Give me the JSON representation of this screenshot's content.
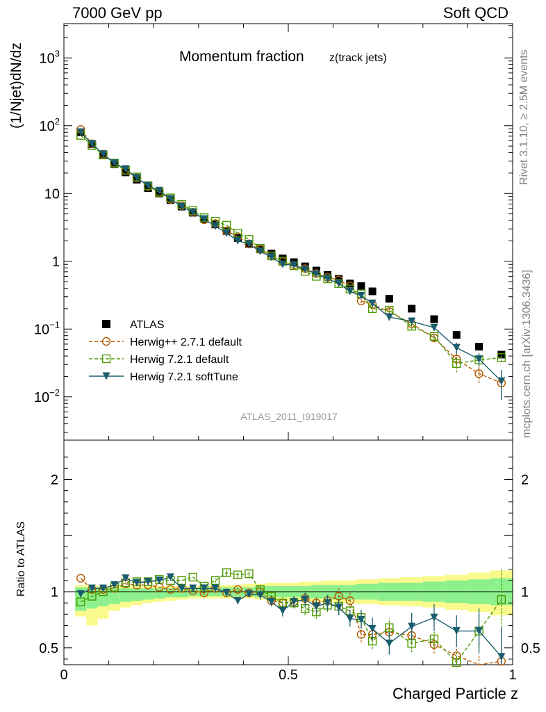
{
  "header": {
    "beam_label": "7000 GeV pp",
    "process_label": "Soft QCD",
    "rivet_label": "Rivet 3.1.10, ≥ 2.5M events",
    "source_label": "mcplots.cern.ch [arXiv:1306.3436]"
  },
  "chart_data": [
    {
      "type": "scatter",
      "title": "Momentum fraction",
      "title_sub": "z(track jets)",
      "analysis_id": "ATLAS_2011_I919017",
      "ylabel": "(1/Njet)dN/dz",
      "xlabel": "",
      "yscale": "log",
      "xlim": [
        0,
        1
      ],
      "ylim": [
        0.0023,
        3200.0
      ],
      "y_ticks": [
        {
          "value": 1000,
          "base": "10",
          "exp": "3"
        },
        {
          "value": 100,
          "base": "10",
          "exp": "2"
        },
        {
          "value": 10,
          "base": "10",
          "exp": ""
        },
        {
          "value": 1,
          "base": "1",
          "exp": ""
        },
        {
          "value": 0.1,
          "base": "10",
          "exp": "−1"
        },
        {
          "value": 0.01,
          "base": "10",
          "exp": "−2"
        }
      ],
      "legend_position": "bottom-left",
      "x": [
        0.0375,
        0.0625,
        0.0875,
        0.1125,
        0.1375,
        0.1625,
        0.1875,
        0.2125,
        0.2375,
        0.2625,
        0.2875,
        0.3125,
        0.3375,
        0.3625,
        0.3875,
        0.4125,
        0.4375,
        0.4625,
        0.4875,
        0.5125,
        0.5375,
        0.5625,
        0.5875,
        0.6125,
        0.6375,
        0.6625,
        0.6875,
        0.725,
        0.775,
        0.825,
        0.875,
        0.925,
        0.975
      ],
      "series": [
        {
          "name": "ATLAS",
          "color": "#000000",
          "marker": "filled-square",
          "line": "none",
          "values": [
            80,
            53,
            37,
            27,
            20.5,
            16,
            12,
            10,
            8,
            6.4,
            5.2,
            4.2,
            3.5,
            2.8,
            2.2,
            1.8,
            1.5,
            1.3,
            1.1,
            0.97,
            0.84,
            0.73,
            0.63,
            0.55,
            0.47,
            0.43,
            0.36,
            0.28,
            0.2,
            0.14,
            0.082,
            0.055,
            0.042
          ],
          "errors": []
        },
        {
          "name": "Herwig++ 2.7.1 default",
          "color": "#b35900",
          "marker": "open-circle",
          "line": "dashed",
          "values": [
            88,
            54,
            38,
            28,
            22,
            17,
            12.7,
            10.5,
            8.2,
            6.6,
            5.3,
            4.1,
            3.6,
            2.8,
            2.3,
            1.8,
            1.5,
            1.2,
            0.99,
            0.88,
            0.78,
            0.66,
            0.58,
            0.53,
            0.43,
            0.26,
            0.23,
            0.18,
            0.12,
            0.074,
            0.036,
            0.022,
            0.016
          ],
          "errors": [
            0,
            0,
            0,
            0,
            0,
            0,
            0,
            0,
            0,
            0,
            0,
            0,
            0,
            0,
            0,
            0,
            0,
            0,
            0,
            0,
            0,
            0,
            0,
            0,
            0,
            0.02,
            0.02,
            0.015,
            0.012,
            0.009,
            0.008,
            0.006,
            0.006
          ]
        },
        {
          "name": "Herwig 7.2.1 default",
          "color": "#4c9900",
          "marker": "open-square",
          "line": "dashed",
          "values": [
            72,
            51,
            37,
            28,
            22,
            17.5,
            13,
            10.4,
            8.6,
            6.9,
            5.6,
            4.4,
            3.9,
            3.4,
            2.6,
            2.1,
            1.55,
            1.2,
            1.0,
            0.86,
            0.71,
            0.6,
            0.55,
            0.47,
            0.39,
            0.33,
            0.2,
            0.19,
            0.11,
            0.078,
            0.031,
            0.035,
            0.038
          ],
          "errors": [
            0,
            0,
            0,
            0,
            0,
            0,
            0,
            0,
            0,
            0,
            0,
            0,
            0,
            0,
            0,
            0,
            0,
            0,
            0,
            0,
            0,
            0,
            0,
            0,
            0,
            0.02,
            0.02,
            0.015,
            0.012,
            0.009,
            0.008,
            0.006,
            0.005
          ]
        },
        {
          "name": "Herwig 7.2.1 softTune",
          "color": "#1a5c6e",
          "marker": "filled-triangle-down",
          "line": "solid",
          "values": [
            80,
            54,
            38,
            28,
            23,
            17,
            13,
            11,
            8.3,
            6.4,
            5.3,
            4.2,
            3.3,
            2.6,
            2.0,
            1.8,
            1.4,
            1.15,
            0.9,
            0.88,
            0.76,
            0.65,
            0.55,
            0.47,
            0.36,
            0.31,
            0.24,
            0.15,
            0.13,
            0.105,
            0.053,
            0.036,
            0.017
          ],
          "errors": [
            0,
            0,
            0,
            0,
            0,
            0,
            0,
            0,
            0,
            0,
            0,
            0,
            0,
            0,
            0,
            0,
            0,
            0,
            0,
            0,
            0,
            0,
            0,
            0,
            0,
            0.02,
            0.015,
            0.015,
            0.012,
            0.01,
            0.01,
            0.008,
            0.008
          ]
        }
      ]
    },
    {
      "type": "scatter",
      "ylabel": "Ratio to ATLAS",
      "xlabel": "Charged Particle z",
      "xlim": [
        0,
        1
      ],
      "ylim": [
        0.35,
        2.35
      ],
      "x_ticks": [
        {
          "value": 0,
          "label": "0"
        },
        {
          "value": 0.5,
          "label": "0.5"
        },
        {
          "value": 1,
          "label": "1"
        }
      ],
      "y_ticks": [
        {
          "value": 2,
          "label": "2"
        },
        {
          "value": 1,
          "label": "1"
        },
        {
          "value": 0.5,
          "label": "0.5"
        }
      ],
      "reference_line": 1,
      "x": [
        0.0375,
        0.0625,
        0.0875,
        0.1125,
        0.1375,
        0.1625,
        0.1875,
        0.2125,
        0.2375,
        0.2625,
        0.2875,
        0.3125,
        0.3375,
        0.3625,
        0.3875,
        0.4125,
        0.4375,
        0.4625,
        0.4875,
        0.5125,
        0.5375,
        0.5625,
        0.5875,
        0.6125,
        0.6375,
        0.6625,
        0.6875,
        0.725,
        0.775,
        0.825,
        0.875,
        0.925,
        0.975
      ],
      "bands": {
        "edges": [
          0.025,
          0.05,
          0.075,
          0.1,
          0.125,
          0.15,
          0.175,
          0.2,
          0.225,
          0.25,
          0.275,
          0.3,
          0.325,
          0.35,
          0.375,
          0.4,
          0.425,
          0.45,
          0.475,
          0.5,
          0.525,
          0.55,
          0.575,
          0.6,
          0.625,
          0.65,
          0.675,
          0.7,
          0.75,
          0.8,
          0.85,
          0.9,
          0.95,
          1.0
        ],
        "inner": {
          "color": "#8cf08c",
          "lo": [
            0.83,
            0.85,
            0.87,
            0.89,
            0.91,
            0.92,
            0.93,
            0.94,
            0.95,
            0.95,
            0.96,
            0.96,
            0.96,
            0.96,
            0.96,
            0.96,
            0.95,
            0.95,
            0.95,
            0.95,
            0.94,
            0.94,
            0.94,
            0.93,
            0.93,
            0.93,
            0.93,
            0.92,
            0.92,
            0.91,
            0.9,
            0.89,
            0.88
          ],
          "hi": [
            1.04,
            1.04,
            1.03,
            1.03,
            1.03,
            1.03,
            1.03,
            1.03,
            1.03,
            1.03,
            1.03,
            1.03,
            1.04,
            1.04,
            1.04,
            1.04,
            1.05,
            1.05,
            1.05,
            1.05,
            1.05,
            1.06,
            1.06,
            1.06,
            1.06,
            1.07,
            1.07,
            1.08,
            1.08,
            1.09,
            1.1,
            1.11,
            1.12
          ]
        },
        "outer": {
          "color": "#fafa8c",
          "lo": [
            0.78,
            0.7,
            0.76,
            0.83,
            0.86,
            0.88,
            0.9,
            0.91,
            0.92,
            0.93,
            0.94,
            0.94,
            0.94,
            0.94,
            0.94,
            0.94,
            0.93,
            0.92,
            0.92,
            0.92,
            0.91,
            0.91,
            0.91,
            0.9,
            0.9,
            0.89,
            0.89,
            0.88,
            0.87,
            0.86,
            0.84,
            0.82,
            0.79
          ],
          "hi": [
            1.06,
            1.06,
            1.05,
            1.05,
            1.05,
            1.05,
            1.05,
            1.05,
            1.05,
            1.05,
            1.05,
            1.05,
            1.06,
            1.06,
            1.06,
            1.07,
            1.07,
            1.08,
            1.08,
            1.08,
            1.09,
            1.09,
            1.1,
            1.1,
            1.1,
            1.11,
            1.11,
            1.12,
            1.13,
            1.14,
            1.15,
            1.17,
            1.19
          ]
        }
      },
      "series": [
        {
          "name": "Herwig++ 2.7.1 default",
          "color": "#b35900",
          "marker": "open-circle",
          "line": "dashed",
          "values": [
            1.12,
            1.02,
            1.02,
            1.03,
            1.07,
            1.06,
            1.06,
            1.04,
            1.02,
            1.03,
            1.01,
            0.99,
            1.03,
            0.99,
            1.02,
            0.99,
            1.0,
            0.92,
            0.9,
            0.91,
            0.94,
            0.9,
            0.92,
            0.96,
            0.92,
            0.62,
            0.62,
            0.64,
            0.61,
            0.53,
            0.43,
            0.34,
            0.38
          ],
          "errors": [
            0,
            0,
            0,
            0,
            0,
            0,
            0,
            0,
            0,
            0,
            0,
            0.02,
            0.02,
            0.02,
            0.03,
            0.03,
            0.04,
            0.04,
            0.05,
            0.05,
            0.06,
            0.06,
            0.06,
            0.07,
            0.07,
            0.07,
            0.07,
            0.08,
            0.08,
            0.08,
            0.08,
            0.09,
            0.1
          ]
        },
        {
          "name": "Herwig 7.2.1 default",
          "color": "#4c9900",
          "marker": "open-square",
          "line": "dashed",
          "values": [
            0.91,
            0.96,
            1.0,
            1.04,
            1.08,
            1.09,
            1.09,
            1.11,
            1.1,
            1.1,
            1.13,
            1.05,
            1.1,
            1.17,
            1.15,
            1.16,
            1.02,
            0.96,
            0.9,
            0.9,
            0.85,
            0.82,
            0.88,
            0.87,
            0.83,
            0.77,
            0.56,
            0.68,
            0.54,
            0.58,
            0.37,
            0.65,
            0.93
          ],
          "errors": [
            0,
            0,
            0,
            0,
            0,
            0,
            0,
            0,
            0,
            0,
            0,
            0.02,
            0.02,
            0.03,
            0.03,
            0.03,
            0.04,
            0.04,
            0.05,
            0.05,
            0.06,
            0.06,
            0.06,
            0.07,
            0.07,
            0.07,
            0.07,
            0.08,
            0.08,
            0.08,
            0.09,
            0.15,
            0.28
          ]
        },
        {
          "name": "Herwig 7.2.1 softTune",
          "color": "#1a5c6e",
          "marker": "filled-triangle-down",
          "line": "solid",
          "values": [
            0.98,
            1.03,
            1.03,
            1.06,
            1.12,
            1.08,
            1.09,
            1.1,
            1.13,
            1.03,
            1.03,
            1.03,
            1.03,
            0.99,
            0.92,
            0.98,
            0.97,
            0.91,
            0.83,
            0.91,
            0.93,
            0.87,
            0.9,
            0.86,
            0.76,
            0.75,
            0.67,
            0.54,
            0.69,
            0.77,
            0.65,
            0.65,
            0.42
          ],
          "errors": [
            0,
            0,
            0,
            0,
            0,
            0,
            0,
            0,
            0,
            0,
            0,
            0.02,
            0.02,
            0.03,
            0.03,
            0.03,
            0.04,
            0.04,
            0.05,
            0.05,
            0.06,
            0.06,
            0.07,
            0.07,
            0.07,
            0.08,
            0.1,
            0.1,
            0.12,
            0.12,
            0.14,
            0.2,
            0.26
          ]
        }
      ]
    }
  ]
}
